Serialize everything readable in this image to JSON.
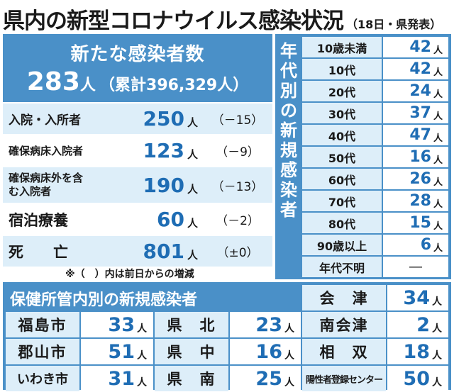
{
  "header": {
    "title": "県内の新型コロナウイルス感染状況",
    "note": "（18日・県発表）"
  },
  "summary": {
    "label": "新たな感染者数",
    "new_cases": "283",
    "new_cases_unit": "人",
    "cumulative": "（累計396,329人）",
    "rows": [
      {
        "label": "入院・入所者",
        "value": "250",
        "unit": "人",
        "change": "（－15）"
      },
      {
        "label": "確保病床入院者",
        "value": "123",
        "unit": "人",
        "change": "（－9）"
      },
      {
        "label": "確保病床外を含む入院者",
        "value": "190",
        "unit": "人",
        "change": "（－13）"
      },
      {
        "label": "宿泊療養",
        "value": "60",
        "unit": "人",
        "change": "（－2）"
      },
      {
        "label": "死　　亡",
        "value": "801",
        "unit": "人",
        "change": "（±0）"
      }
    ],
    "note": "※（　）内は前日からの増減"
  },
  "age": {
    "title": "年代別の新規感染者",
    "rows": [
      {
        "label": "10歳未満",
        "value": "42",
        "unit": "人"
      },
      {
        "label": "10代",
        "value": "42",
        "unit": "人"
      },
      {
        "label": "20代",
        "value": "24",
        "unit": "人"
      },
      {
        "label": "30代",
        "value": "37",
        "unit": "人"
      },
      {
        "label": "40代",
        "value": "47",
        "unit": "人"
      },
      {
        "label": "50代",
        "value": "16",
        "unit": "人"
      },
      {
        "label": "60代",
        "value": "26",
        "unit": "人"
      },
      {
        "label": "70代",
        "value": "28",
        "unit": "人"
      },
      {
        "label": "80代",
        "value": "15",
        "unit": "人"
      },
      {
        "label": "90歳以上",
        "value": "6",
        "unit": "人"
      },
      {
        "label": "年代不明",
        "value": "―",
        "unit": ""
      }
    ]
  },
  "health_centers": {
    "title": "保健所管内別の新規感染者",
    "cells": [
      {
        "label": "会　津",
        "value": "34",
        "unit": "人"
      },
      {
        "label": "福島市",
        "value": "33",
        "unit": "人"
      },
      {
        "label": "県　北",
        "value": "23",
        "unit": "人"
      },
      {
        "label": "南会津",
        "value": "2",
        "unit": "人"
      },
      {
        "label": "郡山市",
        "value": "51",
        "unit": "人"
      },
      {
        "label": "県　中",
        "value": "16",
        "unit": "人"
      },
      {
        "label": "相　双",
        "value": "18",
        "unit": "人"
      },
      {
        "label": "いわき市",
        "value": "31",
        "unit": "人"
      },
      {
        "label": "県　南",
        "value": "25",
        "unit": "人"
      },
      {
        "label": "陽性者登録センター",
        "value": "50",
        "unit": "人"
      }
    ]
  }
}
